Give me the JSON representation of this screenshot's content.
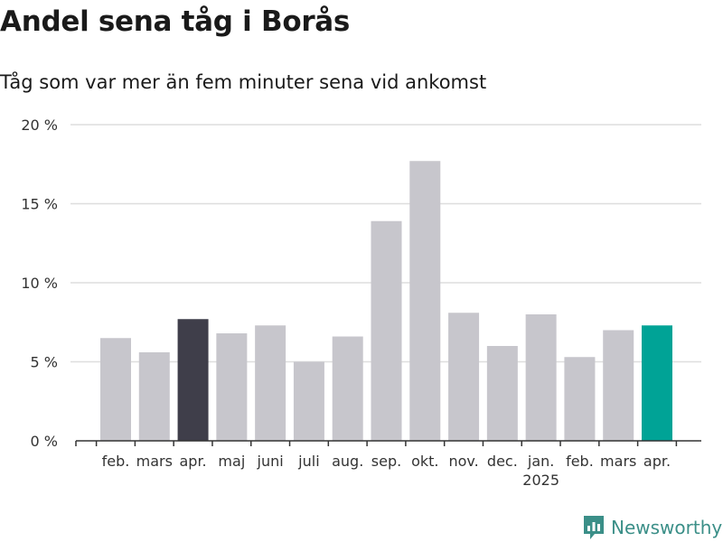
{
  "title": "Andel sena tåg i Borås",
  "subtitle": "Tåg som var mer än fem minuter sena vid ankomst",
  "brand": {
    "name": "Newsworthy",
    "icon": "newsworthy-logo-icon"
  },
  "colors": {
    "default": "#c7c6cc",
    "highlight_dark": "#3f3e4a",
    "highlight_accent": "#00a396",
    "grid": "#dedede",
    "axis": "#333333"
  },
  "chart_data": {
    "type": "bar",
    "categories": [
      "feb.",
      "mars",
      "apr.",
      "maj",
      "juni",
      "juli",
      "aug.",
      "sep.",
      "okt.",
      "nov.",
      "dec.",
      "jan.",
      "feb.",
      "mars",
      "apr."
    ],
    "year_marker": {
      "category_index": 11,
      "label": "2025"
    },
    "values": [
      6.5,
      5.6,
      7.7,
      6.8,
      7.3,
      5.0,
      6.6,
      13.9,
      17.7,
      8.1,
      6.0,
      8.0,
      5.3,
      7.0,
      7.3
    ],
    "highlight": {
      "2": "dark",
      "14": "accent"
    },
    "ylim": [
      0,
      20
    ],
    "y_ticks": [
      0,
      5,
      10,
      15,
      20
    ],
    "y_tick_labels": [
      "0 %",
      "5 %",
      "10 %",
      "15 %",
      "20 %"
    ],
    "grid": true,
    "legend": "none",
    "xlabel": "",
    "ylabel": ""
  }
}
